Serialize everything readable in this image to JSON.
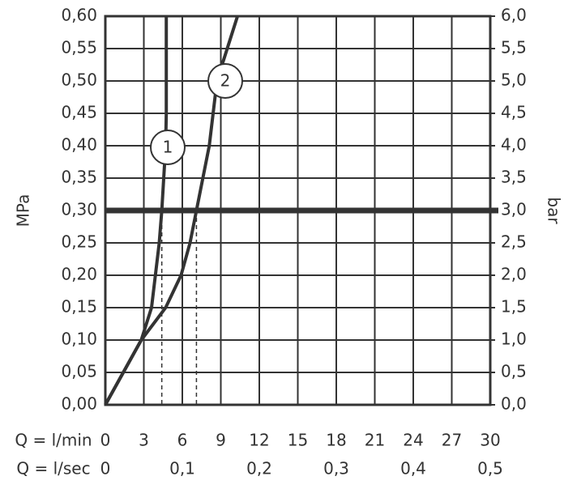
{
  "chart_data": {
    "type": "line",
    "ylabel": "MPa",
    "y2label": "bar",
    "xlabel": "Q = l/min",
    "x2label": "Q = l/sec",
    "xlim": [
      0,
      30
    ],
    "xticks": [
      0,
      3,
      6,
      9,
      12,
      15,
      18,
      21,
      24,
      27,
      30
    ],
    "x2lim": [
      0,
      0.5
    ],
    "x2ticks": [
      0,
      {
        "value": 0.1,
        "label": "0,1"
      },
      {
        "value": 0.2,
        "label": "0,2"
      },
      {
        "value": 0.3,
        "label": "0,3"
      },
      {
        "value": 0.4,
        "label": "0,4"
      },
      {
        "value": 0.5,
        "label": "0,5"
      }
    ],
    "ylim": [
      0,
      0.6
    ],
    "yticks": [
      {
        "value": 0,
        "label": "0,00"
      },
      {
        "value": 0.05,
        "label": "0,05"
      },
      {
        "value": 0.1,
        "label": "0,10"
      },
      {
        "value": 0.15,
        "label": "0,15"
      },
      {
        "value": 0.2,
        "label": "0,20"
      },
      {
        "value": 0.25,
        "label": "0,25"
      },
      {
        "value": 0.3,
        "label": "0,30"
      },
      {
        "value": 0.35,
        "label": "0,35"
      },
      {
        "value": 0.4,
        "label": "0,40"
      },
      {
        "value": 0.45,
        "label": "0,45"
      },
      {
        "value": 0.5,
        "label": "0,50"
      },
      {
        "value": 0.55,
        "label": "0,55"
      },
      {
        "value": 0.6,
        "label": "0,60"
      }
    ],
    "y2lim": [
      0,
      6
    ],
    "y2ticks": [
      {
        "value": 0,
        "label": "0,0"
      },
      {
        "value": 0.5,
        "label": "0,5"
      },
      {
        "value": 1,
        "label": "1,0"
      },
      {
        "value": 1.5,
        "label": "1,5"
      },
      {
        "value": 2,
        "label": "2,0"
      },
      {
        "value": 2.5,
        "label": "2,5"
      },
      {
        "value": 3,
        "label": "3,0"
      },
      {
        "value": 3.5,
        "label": "3,5"
      },
      {
        "value": 4,
        "label": "4,0"
      },
      {
        "value": 4.5,
        "label": "4,5"
      },
      {
        "value": 5,
        "label": "5,0"
      },
      {
        "value": 5.5,
        "label": "5,5"
      },
      {
        "value": 6,
        "label": "6,0"
      }
    ],
    "grid": true,
    "reference_line": 0.3,
    "series": [
      {
        "name": "1",
        "color": "#333333",
        "x": [
          0,
          1.4,
          2.8,
          3.6,
          3.9,
          4.2,
          4.4,
          4.55,
          4.7,
          4.75,
          4.75,
          4.75
        ],
        "values": [
          0,
          0.05,
          0.1,
          0.15,
          0.2,
          0.25,
          0.3,
          0.35,
          0.4,
          0.45,
          0.5,
          0.6
        ]
      },
      {
        "name": "2",
        "color": "#333333",
        "x": [
          0,
          1.4,
          2.8,
          4.7,
          5.9,
          6.6,
          7.1,
          7.6,
          8.1,
          8.7,
          9.5,
          10.3
        ],
        "values": [
          0,
          0.05,
          0.1,
          0.15,
          0.2,
          0.25,
          0.3,
          0.35,
          0.4,
          0.5,
          0.55,
          0.6
        ]
      }
    ]
  }
}
